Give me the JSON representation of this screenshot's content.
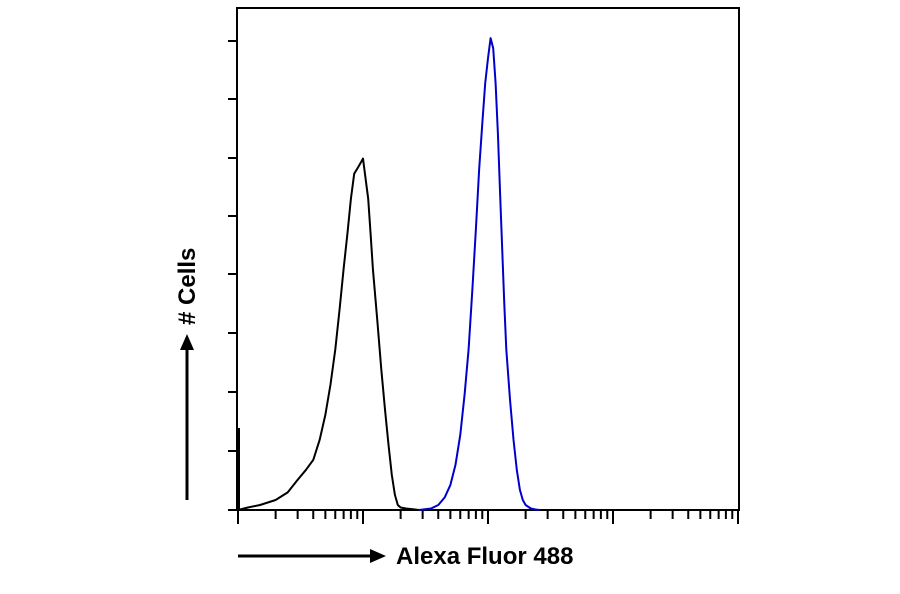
{
  "chart_data": {
    "type": "line",
    "title": "",
    "xlabel": "Alexa Fluor 488",
    "ylabel": "# Cells",
    "x_scale": "log",
    "xlim": [
      1,
      10000
    ],
    "ylim": [
      0,
      100
    ],
    "grid": false,
    "legend": "none",
    "series": [
      {
        "color": "#000000",
        "x": [
          1,
          1.2,
          1.5,
          2,
          2.5,
          3,
          3.5,
          4,
          4.5,
          5,
          5.5,
          6,
          6.5,
          7,
          7.5,
          8,
          8.5,
          9,
          9.5,
          10,
          10.5,
          11,
          11.5,
          12,
          13,
          14,
          15,
          16,
          17,
          18,
          19,
          20,
          22,
          24,
          26,
          28
        ],
        "y": [
          0,
          0.5,
          1,
          2,
          3.5,
          6,
          8,
          10,
          14,
          19,
          25,
          32,
          40,
          48,
          55,
          62,
          67,
          68,
          69,
          70,
          66,
          62,
          55,
          48,
          38,
          28,
          20,
          13,
          7,
          3,
          1,
          0.5,
          0.3,
          0.2,
          0.1,
          0
        ]
      },
      {
        "color": "#0000cc",
        "x": [
          28,
          35,
          40,
          45,
          50,
          55,
          60,
          65,
          70,
          75,
          80,
          85,
          90,
          95,
          100,
          105,
          110,
          115,
          120,
          125,
          130,
          135,
          140,
          150,
          160,
          170,
          180,
          190,
          200,
          220,
          240,
          260
        ],
        "y": [
          0,
          0.3,
          1,
          2.5,
          5,
          9,
          15,
          23,
          32,
          44,
          56,
          68,
          77,
          85,
          90,
          94,
          92,
          85,
          75,
          63,
          52,
          41,
          32,
          22,
          14,
          8,
          4,
          2,
          1,
          0.3,
          0.1,
          0
        ]
      }
    ]
  }
}
